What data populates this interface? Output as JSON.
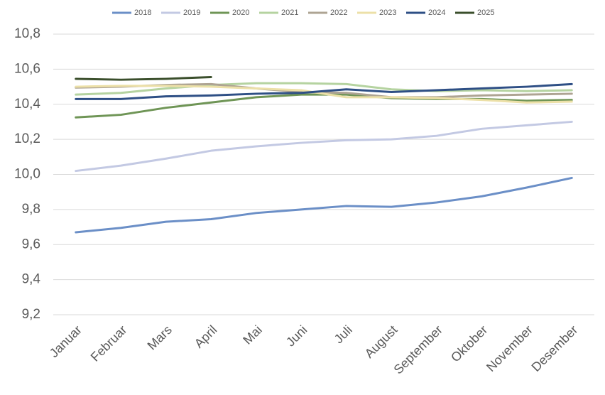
{
  "chart_data": {
    "type": "line",
    "categories": [
      "Januar",
      "Februar",
      "Mars",
      "April",
      "Mai",
      "Juni",
      "Juli",
      "August",
      "September",
      "Oktober",
      "November",
      "Desember"
    ],
    "series": [
      {
        "name": "2018",
        "color": "#6b8fc7",
        "values": [
          9.67,
          9.695,
          9.73,
          9.745,
          9.78,
          9.8,
          9.82,
          9.815,
          9.84,
          9.875,
          9.925,
          9.98
        ]
      },
      {
        "name": "2019",
        "color": "#c3c9e3",
        "values": [
          10.02,
          10.05,
          10.09,
          10.135,
          10.16,
          10.18,
          10.195,
          10.2,
          10.22,
          10.26,
          10.28,
          10.3
        ]
      },
      {
        "name": "2020",
        "color": "#6f9556",
        "values": [
          10.325,
          10.34,
          10.38,
          10.41,
          10.44,
          10.455,
          10.455,
          10.435,
          10.43,
          10.43,
          10.42,
          10.425
        ]
      },
      {
        "name": "2021",
        "color": "#b5d3a0",
        "values": [
          10.455,
          10.465,
          10.49,
          10.51,
          10.52,
          10.52,
          10.515,
          10.485,
          10.475,
          10.48,
          10.475,
          10.48
        ]
      },
      {
        "name": "2022",
        "color": "#aea493",
        "values": [
          10.495,
          10.5,
          10.51,
          10.515,
          10.49,
          10.47,
          10.465,
          10.44,
          10.44,
          10.45,
          10.455,
          10.46
        ]
      },
      {
        "name": "2023",
        "color": "#ece0a8",
        "values": [
          10.5,
          10.505,
          10.505,
          10.5,
          10.49,
          10.48,
          10.44,
          10.44,
          10.435,
          10.425,
          10.41,
          10.415
        ]
      },
      {
        "name": "2024",
        "color": "#2e4f85",
        "values": [
          10.43,
          10.43,
          10.445,
          10.45,
          10.46,
          10.465,
          10.485,
          10.47,
          10.48,
          10.49,
          10.5,
          10.515
        ]
      },
      {
        "name": "2025",
        "color": "#3b4f2c",
        "values": [
          10.545,
          10.54,
          10.545,
          10.555,
          null,
          null,
          null,
          null,
          null,
          null,
          null,
          null
        ]
      }
    ],
    "ylim": [
      9.2,
      10.8
    ],
    "yticks": [
      {
        "value": 9.2,
        "label": "9,2"
      },
      {
        "value": 9.4,
        "label": "9,4"
      },
      {
        "value": 9.6,
        "label": "9,6"
      },
      {
        "value": 9.8,
        "label": "9,8"
      },
      {
        "value": 10.0,
        "label": "10,0"
      },
      {
        "value": 10.2,
        "label": "10,2"
      },
      {
        "value": 10.4,
        "label": "10,4"
      },
      {
        "value": 10.6,
        "label": "10,6"
      },
      {
        "value": 10.8,
        "label": "10,8"
      }
    ],
    "grid": true,
    "legend": "top"
  }
}
